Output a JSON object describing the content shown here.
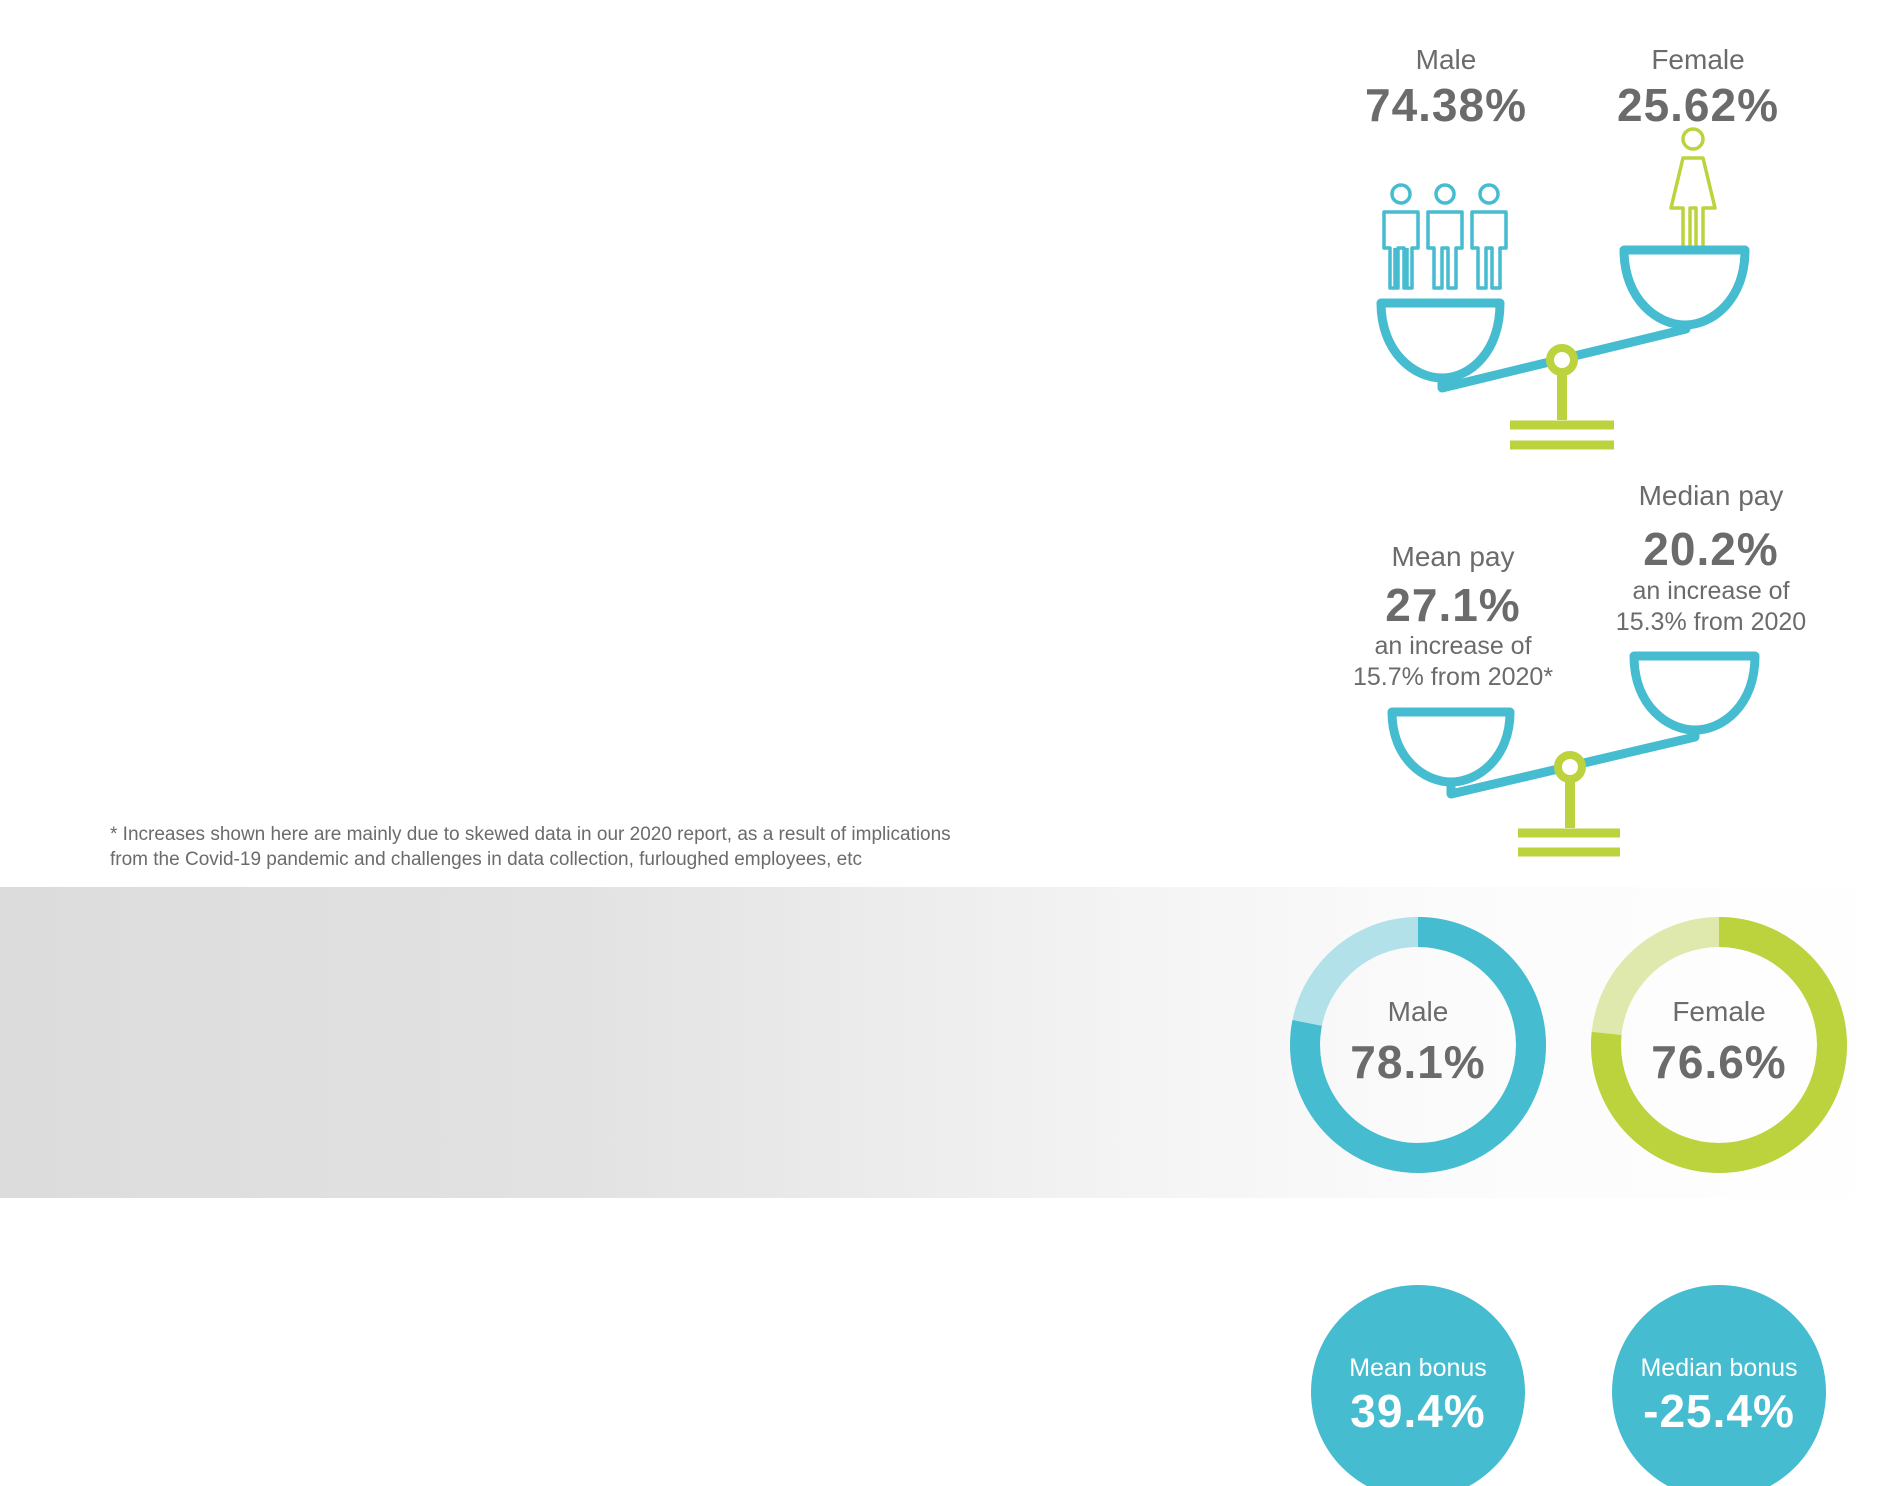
{
  "colors": {
    "blue": "#45bccf",
    "blue_light": "#b2e1ea",
    "green": "#bcd33d",
    "green_light": "#dfe9ae",
    "gray_text": "#6b6b6b"
  },
  "workforce": {
    "male": {
      "label": "Male",
      "value": "74.38%"
    },
    "female": {
      "label": "Female",
      "value": "25.62%"
    },
    "icons": [
      "male-figure-icon",
      "female-figure-icon",
      "balance-scale-icon"
    ]
  },
  "pay_gap": {
    "mean": {
      "label": "Mean pay",
      "value": "27.1%",
      "note_line1": "an increase of",
      "note_line2": "15.7% from 2020*"
    },
    "median": {
      "label": "Median pay",
      "value": "20.2%",
      "note_line1": "an increase of",
      "note_line2": "15.3% from 2020"
    }
  },
  "footnote": {
    "line1": "* Increases shown here are mainly due to skewed data in our 2020 report, as a result of implications",
    "line2": "from the Covid-19 pandemic and challenges in data collection, furloughed employees, etc"
  },
  "bonus_received": {
    "male": {
      "label": "Male",
      "value": "78.1%",
      "fraction": 0.781
    },
    "female": {
      "label": "Female",
      "value": "76.6%",
      "fraction": 0.766
    }
  },
  "bonus_gap": {
    "mean": {
      "label": "Mean bonus",
      "value": "39.4%"
    },
    "median": {
      "label": "Median bonus",
      "value": "-25.4%"
    }
  }
}
